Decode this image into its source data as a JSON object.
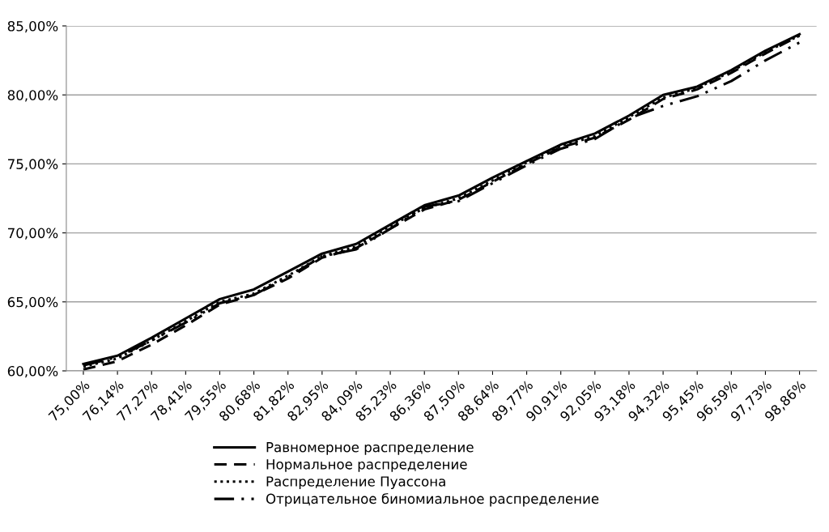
{
  "chart_data": {
    "type": "line",
    "categories": [
      "75,00%",
      "76,14%",
      "77,27%",
      "78,41%",
      "79,55%",
      "80,68%",
      "81,82%",
      "82,95%",
      "84,09%",
      "85,23%",
      "86,36%",
      "87,50%",
      "88,64%",
      "89,77%",
      "90,91%",
      "92,05%",
      "93,18%",
      "94,32%",
      "95,45%",
      "96,59%",
      "97,73%",
      "98,86%"
    ],
    "series": [
      {
        "name": "Равномерное распределение",
        "color": "#000000",
        "line_style": "solid",
        "values": [
          60.5,
          61.1,
          62.4,
          63.8,
          65.2,
          65.9,
          67.2,
          68.5,
          69.2,
          70.6,
          72.0,
          72.7,
          74.0,
          75.2,
          76.4,
          77.2,
          78.5,
          80.0,
          80.6,
          81.8,
          83.2,
          84.4
        ]
      },
      {
        "name": "Нормальное распределение",
        "color": "#000000",
        "line_style": "dashed",
        "values": [
          60.1,
          60.7,
          61.9,
          63.3,
          64.8,
          65.5,
          66.7,
          68.2,
          68.9,
          70.3,
          71.7,
          72.4,
          73.7,
          75.0,
          76.2,
          76.9,
          78.2,
          79.7,
          80.4,
          81.6,
          83.0,
          84.3
        ]
      },
      {
        "name": "Распределение Пуассона",
        "color": "#000000",
        "line_style": "dotted",
        "values": [
          60.3,
          60.9,
          62.2,
          63.6,
          65.0,
          65.6,
          66.9,
          68.3,
          69.0,
          70.5,
          71.8,
          72.5,
          73.8,
          75.1,
          76.3,
          77.0,
          78.4,
          79.8,
          80.5,
          81.7,
          83.1,
          84.3
        ]
      },
      {
        "name": "Отрицательное биномиальное распределение",
        "color": "#000000",
        "line_style": "dashdot",
        "values": [
          60.4,
          61.0,
          62.2,
          63.5,
          64.9,
          65.5,
          66.8,
          68.3,
          68.8,
          70.3,
          71.9,
          72.3,
          73.6,
          74.9,
          76.1,
          76.8,
          78.3,
          79.2,
          79.9,
          81.0,
          82.5,
          83.8
        ]
      }
    ],
    "ylim": [
      60,
      85
    ],
    "yticks": [
      {
        "value": 60,
        "label": "60,00%"
      },
      {
        "value": 65,
        "label": "65,00%"
      },
      {
        "value": 70,
        "label": "70,00%"
      },
      {
        "value": 75,
        "label": "75,00%"
      },
      {
        "value": 80,
        "label": "80,00%"
      },
      {
        "value": 85,
        "label": "85,00%"
      }
    ],
    "grid": "y",
    "legend": "bottom",
    "marker": "none"
  }
}
